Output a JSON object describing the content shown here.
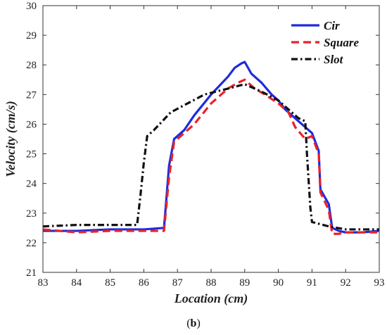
{
  "chart_data": {
    "type": "line",
    "title": "",
    "xlabel": "Location (cm)",
    "ylabel": "Velocity (cm/s)",
    "xlim": [
      83,
      93
    ],
    "ylim": [
      21,
      30
    ],
    "xticks": [
      "83",
      "84",
      "85",
      "86",
      "87",
      "88",
      "89",
      "90",
      "91",
      "92",
      "93"
    ],
    "yticks": [
      "21",
      "22",
      "23",
      "24",
      "25",
      "26",
      "27",
      "28",
      "29",
      "30"
    ],
    "legend_position": "top-right",
    "grid": false,
    "series": [
      {
        "name": "Cir",
        "color": "#1f2bdc",
        "dash": "solid",
        "points": [
          [
            83,
            22.4
          ],
          [
            84,
            22.4
          ],
          [
            85,
            22.45
          ],
          [
            86,
            22.45
          ],
          [
            86.6,
            22.5
          ],
          [
            86.75,
            24.6
          ],
          [
            86.9,
            25.5
          ],
          [
            87.2,
            25.8
          ],
          [
            87.5,
            26.3
          ],
          [
            88.0,
            27.0
          ],
          [
            88.5,
            27.6
          ],
          [
            88.7,
            27.9
          ],
          [
            88.9,
            28.05
          ],
          [
            89.0,
            28.1
          ],
          [
            89.2,
            27.7
          ],
          [
            89.5,
            27.4
          ],
          [
            89.8,
            27.0
          ],
          [
            90.0,
            26.8
          ],
          [
            90.2,
            26.5
          ],
          [
            90.5,
            26.2
          ],
          [
            90.8,
            25.9
          ],
          [
            91.0,
            25.7
          ],
          [
            91.2,
            25.1
          ],
          [
            91.25,
            23.8
          ],
          [
            91.5,
            23.3
          ],
          [
            91.6,
            22.5
          ],
          [
            91.8,
            22.4
          ],
          [
            92,
            22.35
          ],
          [
            92.5,
            22.35
          ],
          [
            93,
            22.4
          ]
        ]
      },
      {
        "name": "Square",
        "color": "#e8222a",
        "dash": "dashed",
        "points": [
          [
            83,
            22.45
          ],
          [
            84,
            22.35
          ],
          [
            85,
            22.4
          ],
          [
            86,
            22.4
          ],
          [
            86.6,
            22.4
          ],
          [
            86.75,
            24.2
          ],
          [
            86.9,
            25.4
          ],
          [
            87.2,
            25.7
          ],
          [
            87.5,
            26.0
          ],
          [
            88.0,
            26.7
          ],
          [
            88.5,
            27.2
          ],
          [
            88.8,
            27.4
          ],
          [
            89.0,
            27.5
          ],
          [
            89.3,
            27.2
          ],
          [
            89.6,
            27.0
          ],
          [
            90.0,
            26.7
          ],
          [
            90.3,
            26.4
          ],
          [
            90.5,
            25.9
          ],
          [
            90.8,
            25.5
          ],
          [
            91.0,
            25.6
          ],
          [
            91.2,
            25.0
          ],
          [
            91.25,
            23.7
          ],
          [
            91.5,
            23.1
          ],
          [
            91.6,
            22.3
          ],
          [
            91.8,
            22.3
          ],
          [
            92,
            22.35
          ],
          [
            92.5,
            22.35
          ],
          [
            93,
            22.35
          ]
        ]
      },
      {
        "name": "Slot",
        "color": "#111111",
        "dash": "dashdot",
        "points": [
          [
            83,
            22.55
          ],
          [
            84,
            22.6
          ],
          [
            85,
            22.6
          ],
          [
            85.8,
            22.6
          ],
          [
            85.9,
            23.6
          ],
          [
            86.0,
            24.7
          ],
          [
            86.1,
            25.6
          ],
          [
            86.3,
            25.8
          ],
          [
            86.8,
            26.4
          ],
          [
            87.3,
            26.7
          ],
          [
            87.8,
            27.0
          ],
          [
            88.5,
            27.2
          ],
          [
            89.0,
            27.35
          ],
          [
            89.5,
            27.1
          ],
          [
            90.0,
            26.8
          ],
          [
            90.3,
            26.5
          ],
          [
            90.6,
            26.2
          ],
          [
            90.8,
            26.1
          ],
          [
            90.85,
            25.0
          ],
          [
            90.95,
            23.2
          ],
          [
            91.0,
            22.7
          ],
          [
            91.5,
            22.55
          ],
          [
            92,
            22.45
          ],
          [
            93,
            22.45
          ]
        ]
      }
    ]
  },
  "caption": {
    "open": "(",
    "letter": "b",
    "close": ")"
  }
}
